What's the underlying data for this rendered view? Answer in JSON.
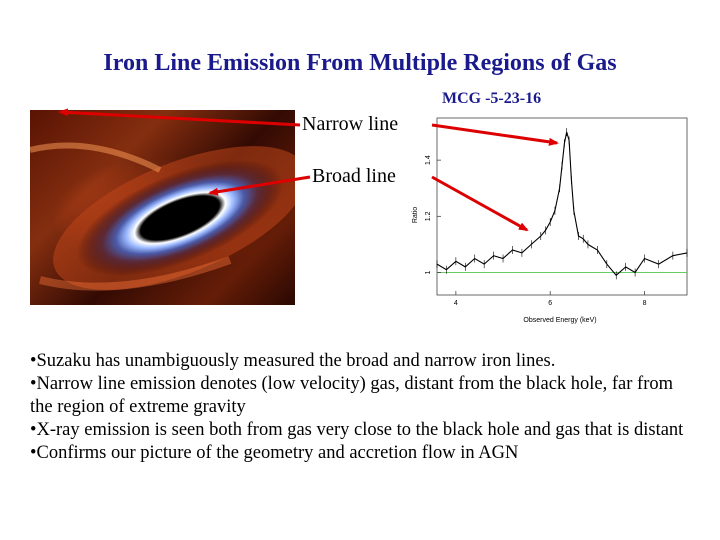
{
  "slide": {
    "title": "Iron Line Emission From Multiple Regions of Gas",
    "labels": {
      "narrow": "Narrow line",
      "broad": "Broad line",
      "object": "MCG -5-23-16"
    },
    "colors": {
      "title": "#1a1a8c",
      "arrow": "#dd0000",
      "baseline": "#66cc66"
    },
    "bullets": [
      "•Suzaku has unambiguously measured the broad and narrow iron lines.",
      "•Narrow line emission denotes (low velocity) gas, distant from the black hole, far from the region of extreme gravity",
      "•X-ray emission is seen both from gas very close to the black hole and gas that is distant",
      "•Confirms our picture of the geometry and accretion flow in AGN"
    ]
  },
  "chart_data": {
    "type": "line",
    "xlabel": "Observed Energy (keV)",
    "ylabel": "Ratio",
    "xticks": [
      "4",
      "6",
      "8"
    ],
    "yticks": [
      "1",
      "1.2",
      "1.4"
    ],
    "xlim": [
      3.6,
      8.9
    ],
    "ylim": [
      0.92,
      1.55
    ],
    "reference_line": 1,
    "series": [
      {
        "x": [
          3.6,
          3.8,
          4.0,
          4.2,
          4.4,
          4.6,
          4.8,
          5.0,
          5.2,
          5.4,
          5.6,
          5.8,
          5.9,
          6.0,
          6.1,
          6.2,
          6.25,
          6.3,
          6.35,
          6.4,
          6.45,
          6.5,
          6.6,
          6.7,
          6.8,
          7.0,
          7.2,
          7.4,
          7.6,
          7.8,
          8.0,
          8.3,
          8.6,
          8.9
        ],
        "y": [
          1.03,
          1.01,
          1.04,
          1.02,
          1.05,
          1.03,
          1.06,
          1.05,
          1.08,
          1.07,
          1.1,
          1.13,
          1.15,
          1.18,
          1.22,
          1.3,
          1.38,
          1.46,
          1.5,
          1.47,
          1.33,
          1.22,
          1.13,
          1.12,
          1.1,
          1.08,
          1.03,
          0.99,
          1.02,
          1.0,
          1.05,
          1.03,
          1.06,
          1.07
        ]
      }
    ]
  }
}
